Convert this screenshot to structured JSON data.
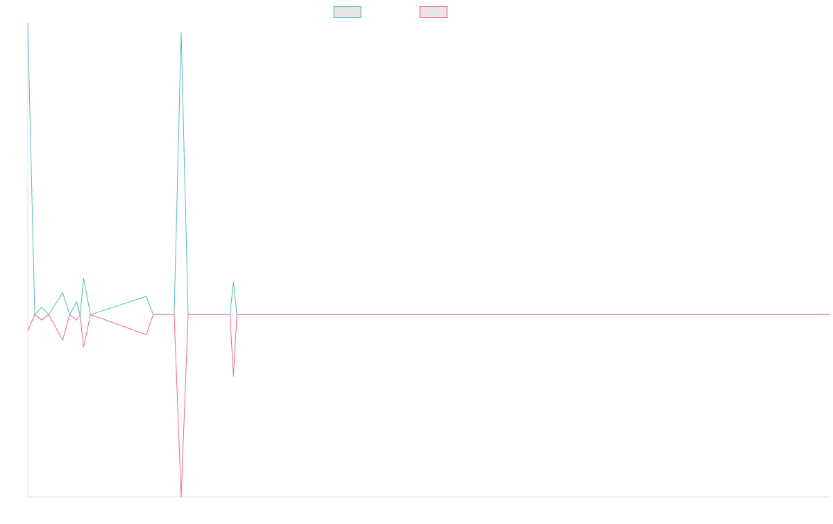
{
  "chart_data": {
    "type": "line",
    "title": "",
    "xlabel": "",
    "ylabel": "",
    "x_count": 116,
    "xlim": [
      0,
      115
    ],
    "ylim": [
      -100,
      160
    ],
    "grid": false,
    "legend_position": "top-center",
    "series": [
      {
        "color": "#4bc0c0",
        "points": [
          [
            0,
            160
          ],
          [
            1,
            0
          ],
          [
            2,
            4
          ],
          [
            3,
            0
          ],
          [
            5,
            12
          ],
          [
            6,
            0
          ],
          [
            7,
            7
          ],
          [
            7.5,
            0
          ],
          [
            8,
            20
          ],
          [
            9,
            0
          ],
          [
            17,
            10
          ],
          [
            18,
            0
          ],
          [
            21,
            0
          ],
          [
            22,
            155
          ],
          [
            23,
            0
          ],
          [
            29,
            0
          ],
          [
            29.5,
            18
          ],
          [
            30,
            0
          ],
          [
            115,
            0
          ]
        ]
      },
      {
        "color": "#ff6384",
        "points": [
          [
            0,
            -9
          ],
          [
            1,
            0
          ],
          [
            2,
            -3
          ],
          [
            3,
            0
          ],
          [
            5,
            -14
          ],
          [
            6,
            0
          ],
          [
            7,
            -3
          ],
          [
            7.5,
            0
          ],
          [
            8,
            -18
          ],
          [
            9,
            0
          ],
          [
            17,
            -11
          ],
          [
            18,
            0
          ],
          [
            21,
            0
          ],
          [
            22,
            -100
          ],
          [
            23,
            0
          ],
          [
            29,
            0
          ],
          [
            29.5,
            -34
          ],
          [
            30,
            0
          ],
          [
            115,
            0
          ]
        ]
      }
    ]
  }
}
